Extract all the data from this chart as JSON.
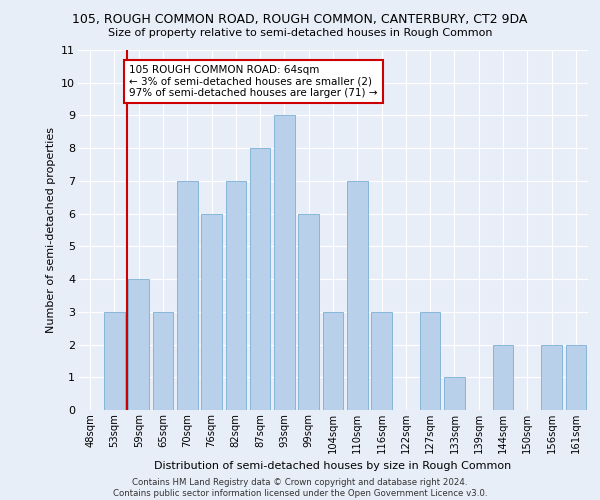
{
  "title1": "105, ROUGH COMMON ROAD, ROUGH COMMON, CANTERBURY, CT2 9DA",
  "title2": "Size of property relative to semi-detached houses in Rough Common",
  "xlabel": "Distribution of semi-detached houses by size in Rough Common",
  "ylabel": "Number of semi-detached properties",
  "categories": [
    "48sqm",
    "53sqm",
    "59sqm",
    "65sqm",
    "70sqm",
    "76sqm",
    "82sqm",
    "87sqm",
    "93sqm",
    "99sqm",
    "104sqm",
    "110sqm",
    "116sqm",
    "122sqm",
    "127sqm",
    "133sqm",
    "139sqm",
    "144sqm",
    "150sqm",
    "156sqm",
    "161sqm"
  ],
  "values": [
    0,
    3,
    4,
    3,
    7,
    6,
    7,
    8,
    9,
    6,
    3,
    7,
    3,
    0,
    3,
    1,
    0,
    2,
    0,
    2,
    2
  ],
  "bar_color": "#b8d0ea",
  "bar_edgecolor": "#7aafd4",
  "annotation_text_line1": "105 ROUGH COMMON ROAD: 64sqm",
  "annotation_text_line2": "← 3% of semi-detached houses are smaller (2)",
  "annotation_text_line3": "97% of semi-detached houses are larger (71) →",
  "annotation_box_color": "#ffffff",
  "annotation_border_color": "#cc0000",
  "vline_color": "#cc0000",
  "vline_x": 1.5,
  "ylim": [
    0,
    11
  ],
  "yticks": [
    0,
    1,
    2,
    3,
    4,
    5,
    6,
    7,
    8,
    9,
    10,
    11
  ],
  "background_color": "#e8eef8",
  "grid_color": "#ffffff",
  "footer": "Contains HM Land Registry data © Crown copyright and database right 2024.\nContains public sector information licensed under the Open Government Licence v3.0."
}
